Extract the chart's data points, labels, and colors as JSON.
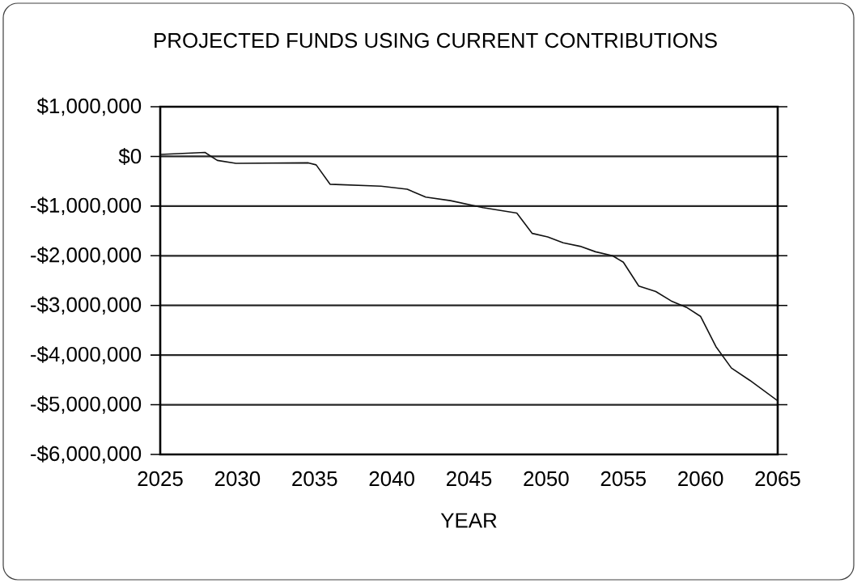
{
  "chart_data": {
    "type": "line",
    "title": "PROJECTED FUNDS USING CURRENT CONTRIBUTIONS",
    "xlabel": "YEAR",
    "x": [
      2025,
      2027.9,
      2028.7,
      2029.9,
      2034.6,
      2035.1,
      2036.0,
      2039.3,
      2041.0,
      2042.2,
      2043.8,
      2045.9,
      2048.1,
      2049.1,
      2050.1,
      2051.1,
      2052.2,
      2053.2,
      2054.3,
      2055.0,
      2056.0,
      2057.1,
      2058.1,
      2059.1,
      2060.0,
      2061.0,
      2062.0,
      2063.2,
      2065
    ],
    "values": [
      40000,
      80000,
      -80000,
      -140000,
      -130000,
      -170000,
      -560000,
      -600000,
      -660000,
      -820000,
      -890000,
      -1030000,
      -1140000,
      -1550000,
      -1620000,
      -1740000,
      -1810000,
      -1920000,
      -2000000,
      -2130000,
      -2610000,
      -2720000,
      -2910000,
      -3040000,
      -3220000,
      -3830000,
      -4260000,
      -4510000,
      -4920000
    ],
    "color": "#111111",
    "marker": "none",
    "line_style": "solid",
    "grid": "y",
    "xlim": [
      2025,
      2065
    ],
    "xticks": [
      2025,
      2030,
      2035,
      2040,
      2045,
      2050,
      2055,
      2060,
      2065
    ],
    "ylim": [
      -6000000,
      1000000
    ],
    "yticks": [
      {
        "value": 1000000,
        "label": "$1,000,000"
      },
      {
        "value": 0,
        "label": "$0"
      },
      {
        "value": -1000000,
        "label": "-$1,000,000"
      },
      {
        "value": -2000000,
        "label": "-$2,000,000"
      },
      {
        "value": -3000000,
        "label": "-$3,000,000"
      },
      {
        "value": -4000000,
        "label": "-$4,000,000"
      },
      {
        "value": -5000000,
        "label": "-$5,000,000"
      },
      {
        "value": -6000000,
        "label": "-$6,000,000"
      }
    ]
  }
}
